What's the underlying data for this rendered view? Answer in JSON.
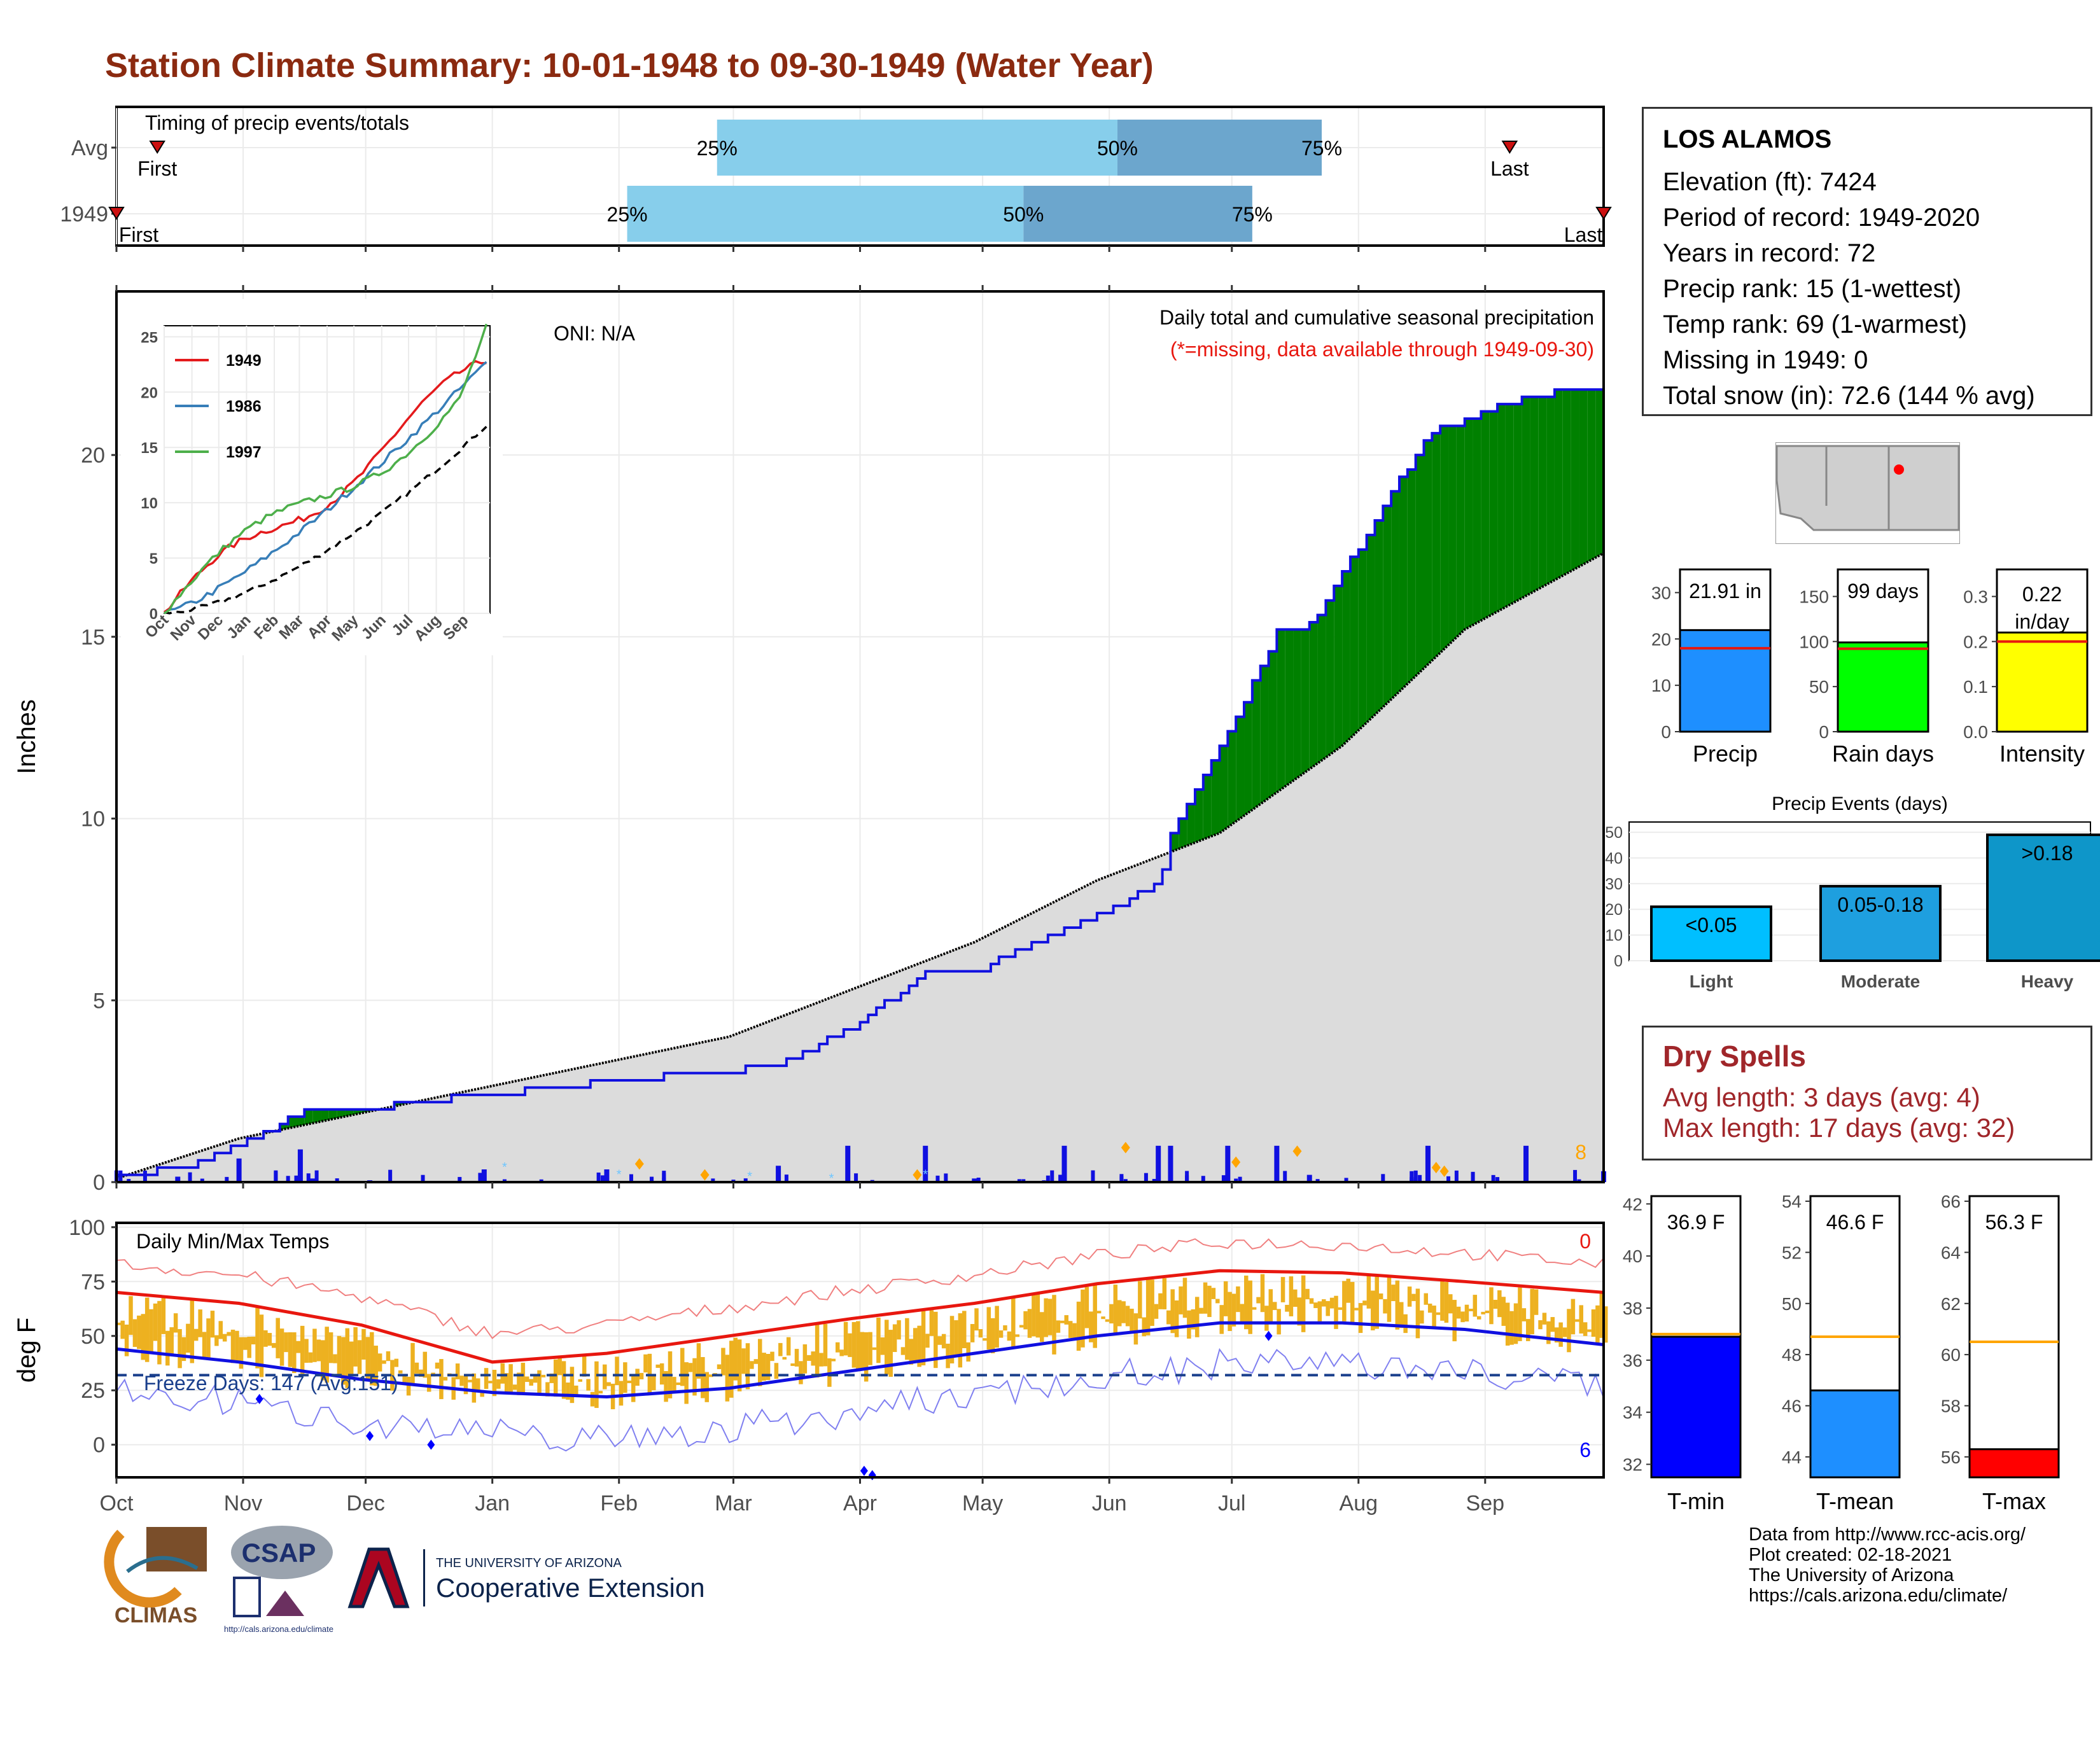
{
  "title": "Station Climate Summary: 10-01-1948 to 09-30-1949 (Water Year)",
  "timing": {
    "label": "Timing of precip events/totals",
    "rows": [
      {
        "name": "Avg",
        "first": "First",
        "last": "Last",
        "p25": "25%",
        "p50": "50%",
        "p75": "75%",
        "first_day": 10,
        "last_day": 341,
        "p25_day": 147,
        "p50_day": 245,
        "p75_day": 295
      },
      {
        "name": "1949",
        "first": "First",
        "last": "Last",
        "p25": "25%",
        "p50": "50%",
        "p75": "75%",
        "first_day": 0,
        "last_day": 364,
        "p25_day": 125,
        "p50_day": 222,
        "p75_day": 278
      }
    ]
  },
  "station": {
    "name": "LOS ALAMOS",
    "lines": [
      "Elevation (ft): 7424",
      "Period of record: 1949-2020",
      "Years in record: 72",
      "Precip rank: 15 (1-wettest)",
      "Temp rank: 69 (1-warmest)",
      "Missing in 1949: 0",
      "Total snow (in): 72.6 (144 % avg)"
    ]
  },
  "precip_panel": {
    "ylabel": "Inches",
    "oni": "ONI: N/A",
    "subtitle1": "Daily total and cumulative seasonal precipitation",
    "subtitle2": "(*=missing, data available through 1949-09-30)",
    "count_label": "8",
    "yticks": [
      "0",
      "5",
      "10",
      "15",
      "20"
    ],
    "months": [
      "Oct",
      "Nov",
      "Dec",
      "Jan",
      "Feb",
      "Mar",
      "Apr",
      "May",
      "Jun",
      "Jul",
      "Aug",
      "Sep"
    ]
  },
  "inset": {
    "legend": [
      "1949",
      "1986",
      "1997"
    ],
    "yticks": [
      "0",
      "5",
      "10",
      "15",
      "20",
      "25"
    ],
    "months": [
      "Oct",
      "Nov",
      "Dec",
      "Jan",
      "Feb",
      "Mar",
      "Apr",
      "May",
      "Jun",
      "Jul",
      "Aug",
      "Sep"
    ]
  },
  "temp_panel": {
    "title": "Daily Min/Max Temps",
    "ylabel": "deg F",
    "freeze": "Freeze Days: 147 (Avg:151)",
    "hot_count": "0",
    "cold_count": "6",
    "yticks": [
      "0",
      "25",
      "50",
      "75",
      "100"
    ]
  },
  "bar_stats": [
    {
      "label": "Precip",
      "value_label": "21.91 in",
      "value": 21.91,
      "avg": 18,
      "max": 35,
      "ticks": [
        "0",
        "10",
        "20",
        "30"
      ],
      "color": "#1E8FFF"
    },
    {
      "label": "Rain days",
      "value_label": "99 days",
      "value": 99,
      "avg": 92,
      "max": 180,
      "ticks": [
        "0",
        "50",
        "100",
        "150"
      ],
      "color": "#00FF00"
    },
    {
      "label": "Intensity",
      "value_label": "0.22 in/day",
      "value": 0.22,
      "avg": 0.2,
      "max": 0.36,
      "ticks": [
        "0.0",
        "0.1",
        "0.2",
        "0.3"
      ],
      "color": "#FFFF00"
    }
  ],
  "events": {
    "title": "Precip Events (days)",
    "bars": [
      {
        "label": "Light",
        "range": "<0.05",
        "value": 21
      },
      {
        "label": "Moderate",
        "range": "0.05-0.18",
        "value": 29
      },
      {
        "label": "Heavy",
        "range": ">0.18",
        "value": 49
      }
    ],
    "ticks": [
      "0",
      "10",
      "20",
      "30",
      "40",
      "50"
    ]
  },
  "dry_spells": {
    "title": "Dry Spells",
    "avg": "Avg length: 3 days (avg: 4)",
    "max": "Max length: 17 days (avg: 32)"
  },
  "temp_stats": [
    {
      "label": "T-min",
      "value_label": "36.9 F",
      "value": 36.9,
      "avg": 37.0,
      "min": 31.5,
      "max": 42.3,
      "ticks": [
        "32",
        "34",
        "36",
        "38",
        "40",
        "42"
      ],
      "color": "#0000FF"
    },
    {
      "label": "T-mean",
      "value_label": "46.6 F",
      "value": 46.6,
      "avg": 48.7,
      "min": 43.2,
      "max": 54.2,
      "ticks": [
        "44",
        "46",
        "48",
        "50",
        "52",
        "54"
      ],
      "color": "#1E8FFF"
    },
    {
      "label": "T-max",
      "value_label": "56.3 F",
      "value": 56.3,
      "avg": 60.5,
      "min": 55.2,
      "max": 66.2,
      "ticks": [
        "56",
        "58",
        "60",
        "62",
        "64",
        "66"
      ],
      "color": "#FF0000"
    }
  ],
  "logos": {
    "climas": "CLIMAS",
    "csap": "CSAP",
    "csap_url": "http://cals.arizona.edu/climate",
    "ua_small": "THE UNIVERSITY OF ARIZONA",
    "ua_big": "Cooperative Extension"
  },
  "footer": [
    "Data from http://www.rcc-acis.org/",
    "Plot created: 02-18-2021",
    "The University of Arizona",
    "https://cals.arizona.edu/climate/"
  ],
  "chart_data": [
    {
      "type": "area",
      "title": "Daily total and cumulative seasonal precipitation",
      "ylabel": "Inches",
      "ylim": [
        0,
        24.5
      ],
      "x_unit": "day of water year",
      "series": [
        {
          "name": "1949",
          "x": [
            0,
            15,
            30,
            45,
            48,
            62,
            90,
            120,
            162,
            179,
            198,
            210,
            232,
            255,
            258,
            272,
            284,
            292,
            321,
            345,
            364
          ],
          "values": [
            0.2,
            0.35,
            1.0,
            1.9,
            2.0,
            2.05,
            2.4,
            2.75,
            3.2,
            4.2,
            5.7,
            5.8,
            6.9,
            8.2,
            9.6,
            12.3,
            15.1,
            15.3,
            20.6,
            21.6,
            21.9
          ]
        },
        {
          "x": [
            0,
            30,
            60,
            90,
            120,
            150,
            180,
            210,
            240,
            270,
            300,
            330,
            364
          ],
          "values": [
            0.1,
            1.2,
            1.9,
            2.6,
            3.3,
            4.0,
            5.3,
            6.6,
            8.3,
            9.6,
            12.0,
            15.2,
            17.3
          ]
        }
      ]
    },
    {
      "type": "line",
      "ylabel": "deg F",
      "ylim": [
        -15,
        102
      ],
      "series": [
        {
          "x": [
            0,
            30,
            60,
            92,
            120,
            150,
            180,
            210,
            240,
            270,
            300,
            330,
            364
          ],
          "values": [
            70,
            65,
            55,
            38,
            42,
            50,
            58,
            65,
            74,
            80,
            79,
            75,
            70
          ]
        },
        {
          "x": [
            0,
            30,
            60,
            92,
            120,
            150,
            180,
            210,
            240,
            270,
            300,
            330,
            364
          ],
          "values": [
            44,
            38,
            30,
            24,
            22,
            26,
            34,
            42,
            50,
            56,
            56,
            53,
            46
          ]
        },
        {
          "name": "Freeze Days",
          "x": [
            0,
            364
          ],
          "values": [
            32,
            32
          ]
        }
      ]
    }
  ]
}
